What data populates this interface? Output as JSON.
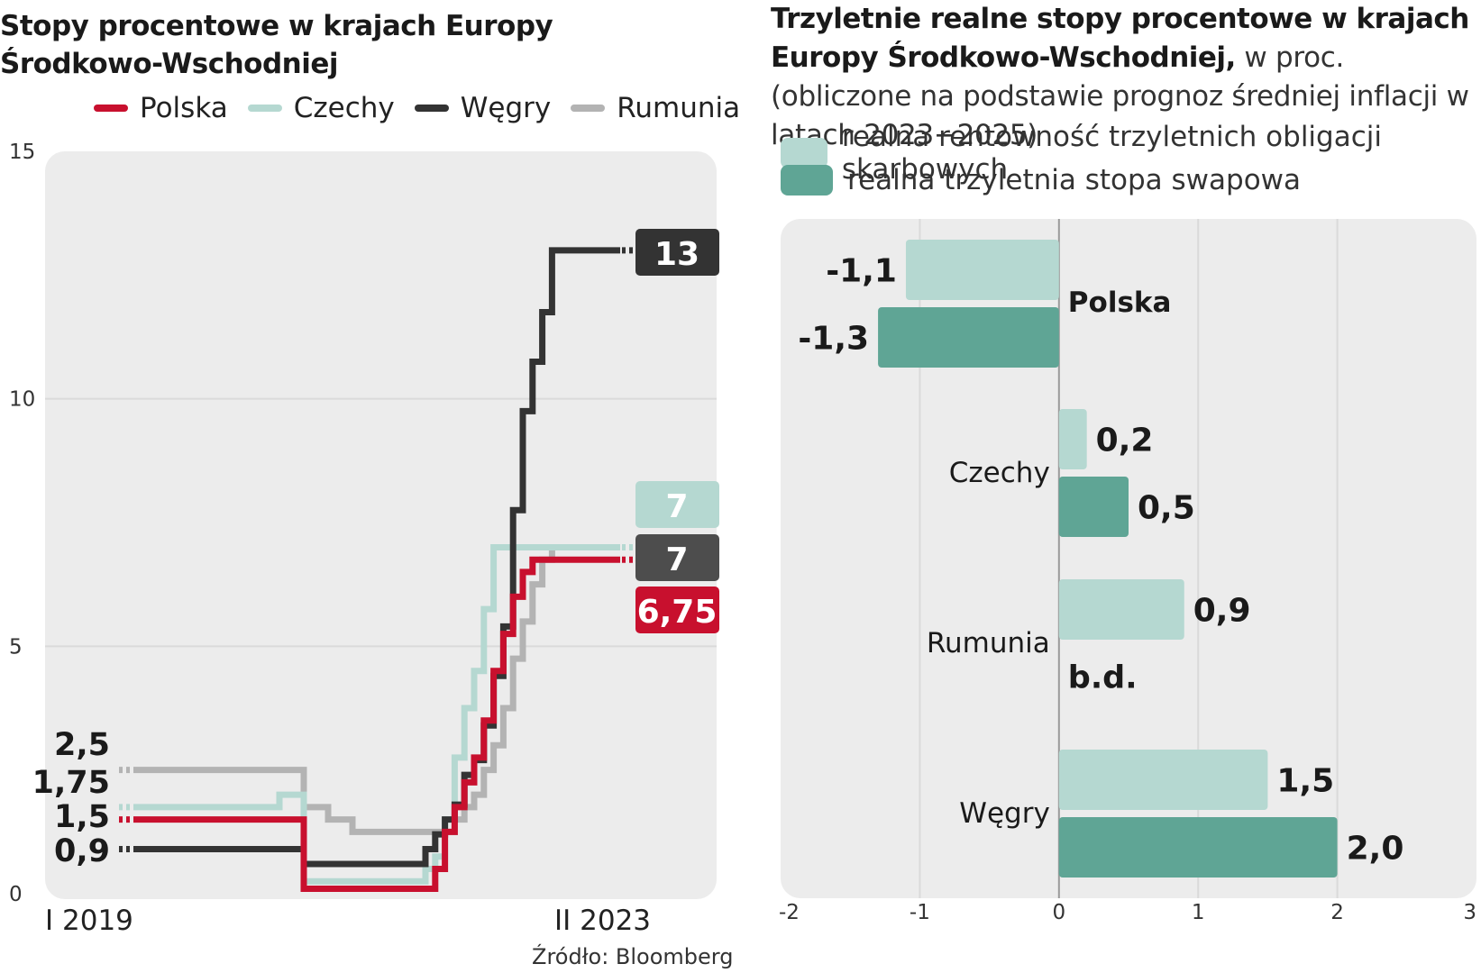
{
  "left_chart": {
    "title_line1": "Stopy procentowe w krajach Europy",
    "title_line2": "Środkowo-Wschodniej",
    "legend": [
      {
        "name": "Polska",
        "color": "#c8102e"
      },
      {
        "name": "Czechy",
        "color": "#b5d8d1"
      },
      {
        "name": "Węgry",
        "color": "#333333"
      },
      {
        "name": "Rumunia",
        "color": "#b3b3b3"
      }
    ],
    "y_ticks": [
      "15",
      "10",
      "5",
      "0"
    ],
    "x_labels": [
      "I 2019",
      "II 2023"
    ],
    "start_labels": [
      "2,5",
      "1,75",
      "1,5",
      "0,9"
    ],
    "end_labels": [
      {
        "text": "13",
        "color": "#333333"
      },
      {
        "text": "7",
        "color": "#b5d8d1"
      },
      {
        "text": "7",
        "color": "#4d4d4d"
      },
      {
        "text": "6,75",
        "color": "#c8102e"
      }
    ],
    "source": "Źródło: Bloomberg"
  },
  "right_chart": {
    "title_bold": "Trzyletnie realne stopy procentowe w krajach Europy Środkowo-Wschodniej,",
    "title_normal": " w proc. (obliczone na podstawie prognoz średniej inflacji w latach 2023−2025)",
    "legend": [
      {
        "name": "realna rentowność trzyletnich obligacji skarbowych",
        "color": "#b5d8d1"
      },
      {
        "name": "realna trzyletnia stopa swapowa",
        "color": "#5fa595"
      }
    ],
    "x_ticks": [
      "-2",
      "-1",
      "0",
      "1",
      "2",
      "3"
    ],
    "no_data_label": "b.d."
  },
  "chart_data": [
    {
      "type": "line",
      "title": "Stopy procentowe w krajach Europy Środkowo-Wschodniej",
      "xlabel": "",
      "ylabel": "",
      "ylim": [
        0,
        15
      ],
      "x_range": [
        "I 2019",
        "II 2023"
      ],
      "x": [
        0,
        0.3,
        0.35,
        0.4,
        0.45,
        0.5,
        0.55,
        0.58,
        0.6,
        0.62,
        0.64,
        0.66,
        0.68,
        0.7,
        0.72,
        0.74,
        0.76,
        0.78,
        0.8,
        0.82,
        0.84,
        0.86,
        0.88,
        0.9,
        0.92,
        0.94,
        0.96,
        1.0
      ],
      "series": [
        {
          "name": "Polska",
          "color": "#c8102e",
          "values": [
            1.5,
            1.5,
            0.1,
            0.1,
            0.1,
            0.1,
            0.1,
            0.1,
            0.1,
            0.5,
            1.25,
            1.75,
            2.25,
            2.75,
            3.5,
            4.5,
            5.25,
            6.0,
            6.5,
            6.75,
            6.75,
            6.75,
            6.75,
            6.75,
            6.75,
            6.75,
            6.75,
            6.75
          ]
        },
        {
          "name": "Czechy",
          "color": "#b5d8d1",
          "values": [
            1.75,
            2.0,
            0.25,
            0.25,
            0.25,
            0.25,
            0.25,
            0.25,
            0.5,
            0.75,
            1.5,
            2.75,
            3.75,
            4.5,
            5.75,
            7.0,
            7.0,
            7.0,
            7.0,
            7.0,
            7.0,
            7.0,
            7.0,
            7.0,
            7.0,
            7.0,
            7.0,
            7.0
          ]
        },
        {
          "name": "Węgry",
          "color": "#333333",
          "values": [
            0.9,
            0.9,
            0.6,
            0.6,
            0.6,
            0.6,
            0.6,
            0.6,
            0.9,
            1.2,
            1.5,
            1.8,
            2.4,
            2.7,
            3.4,
            4.4,
            5.4,
            7.75,
            9.75,
            10.75,
            11.75,
            13.0,
            13.0,
            13.0,
            13.0,
            13.0,
            13.0,
            13.0
          ]
        },
        {
          "name": "Rumunia",
          "color": "#b3b3b3",
          "values": [
            2.5,
            2.5,
            1.75,
            1.5,
            1.25,
            1.25,
            1.25,
            1.25,
            1.25,
            1.25,
            1.25,
            1.5,
            1.75,
            2.0,
            2.5,
            3.0,
            3.75,
            4.75,
            5.5,
            6.25,
            6.75,
            7.0,
            7.0,
            7.0,
            7.0,
            7.0,
            7.0,
            7.0
          ]
        }
      ]
    },
    {
      "type": "bar",
      "orientation": "horizontal",
      "title": "Trzyletnie realne stopy procentowe w krajach Europy Środkowo-Wschodniej, w proc.",
      "categories": [
        "Polska",
        "Czechy",
        "Rumunia",
        "Węgry"
      ],
      "xlim": [
        -2,
        3
      ],
      "series": [
        {
          "name": "realna rentowność trzyletnich obligacji skarbowych",
          "color": "#b5d8d1",
          "values": [
            -1.1,
            0.2,
            0.9,
            1.5
          ],
          "labels": [
            "-1,1",
            "0,2",
            "0,9",
            "1,5"
          ]
        },
        {
          "name": "realna trzyletnia stopa swapowa",
          "color": "#5fa595",
          "values": [
            -1.3,
            0.5,
            null,
            2.0
          ],
          "labels": [
            "-1,3",
            "0,5",
            "b.d.",
            "2,0"
          ]
        }
      ]
    }
  ]
}
